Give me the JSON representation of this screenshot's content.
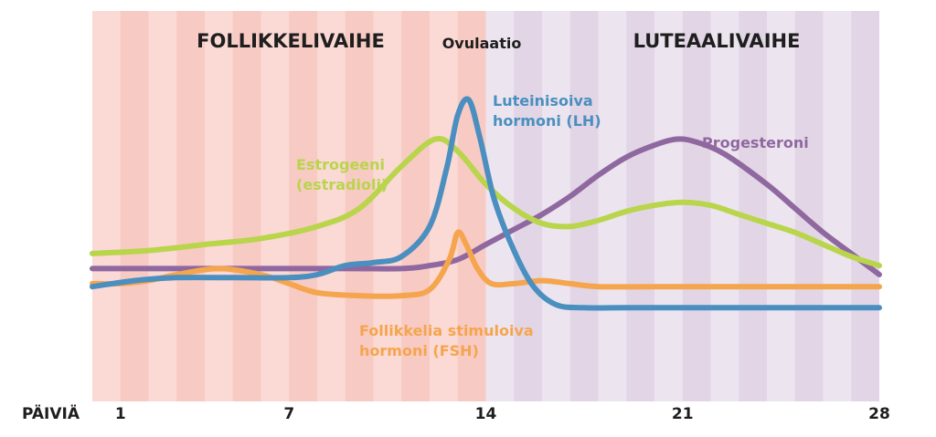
{
  "chart_data": {
    "type": "line",
    "xlabel": "PÄIVIÄ",
    "ticks": [
      {
        "day": 1,
        "label": "1"
      },
      {
        "day": 7,
        "label": "7"
      },
      {
        "day": 14,
        "label": "14"
      },
      {
        "day": 21,
        "label": "21"
      },
      {
        "day": 28,
        "label": "28"
      }
    ],
    "xlim": [
      0,
      28
    ],
    "ylim": [
      0,
      100
    ],
    "phases": [
      {
        "label": "FOLLIKKELIVAIHE",
        "start": 0,
        "end": 14,
        "color": "#fbd9d5",
        "stripe": "#f8cac4"
      },
      {
        "label": "LUTEAALIVAIHE",
        "start": 14,
        "end": 28,
        "color": "#ece5ef",
        "stripe": "#e2d6e6"
      }
    ],
    "annotations": [
      {
        "label": "Ovulaatio",
        "day": 14
      }
    ],
    "series": [
      {
        "name": "Estrogeeni (estradioli)",
        "label_lines": [
          "Estrogeeni",
          "(estradioli)"
        ],
        "color": "#b9d54b",
        "points": [
          [
            0,
            37
          ],
          [
            2,
            38
          ],
          [
            4,
            40
          ],
          [
            6,
            42
          ],
          [
            8,
            46
          ],
          [
            9.5,
            52
          ],
          [
            11,
            66
          ],
          [
            12.2,
            75
          ],
          [
            13,
            71
          ],
          [
            14,
            60
          ],
          [
            15,
            52
          ],
          [
            16,
            47
          ],
          [
            17,
            46
          ],
          [
            18,
            48
          ],
          [
            19,
            51
          ],
          [
            20,
            53
          ],
          [
            21,
            54
          ],
          [
            22,
            53
          ],
          [
            23,
            50
          ],
          [
            24,
            47
          ],
          [
            25,
            44
          ],
          [
            26,
            40
          ],
          [
            27,
            36
          ],
          [
            28,
            33
          ]
        ]
      },
      {
        "name": "Luteinisoiva hormoni (LH)",
        "label_lines": [
          "Luteinisoiva",
          "hormoni (LH)"
        ],
        "color": "#4a8fbf",
        "points": [
          [
            0,
            26
          ],
          [
            1.5,
            28
          ],
          [
            3,
            29
          ],
          [
            5,
            29
          ],
          [
            7,
            29
          ],
          [
            8,
            30
          ],
          [
            9,
            33
          ],
          [
            10,
            34
          ],
          [
            11,
            36
          ],
          [
            12,
            46
          ],
          [
            12.6,
            65
          ],
          [
            13,
            83
          ],
          [
            13.4,
            88
          ],
          [
            13.8,
            75
          ],
          [
            14.3,
            55
          ],
          [
            15,
            38
          ],
          [
            15.7,
            26
          ],
          [
            16.5,
            20
          ],
          [
            17.5,
            19
          ],
          [
            19,
            19
          ],
          [
            23,
            19
          ],
          [
            28,
            19
          ]
        ]
      },
      {
        "name": "Progesteroni",
        "label_lines": [
          "Progesteroni"
        ],
        "color": "#9068a0",
        "points": [
          [
            0,
            32
          ],
          [
            4,
            32
          ],
          [
            9,
            32
          ],
          [
            11,
            32
          ],
          [
            12,
            33
          ],
          [
            13,
            35
          ],
          [
            14,
            40
          ],
          [
            15,
            45
          ],
          [
            16,
            50
          ],
          [
            17,
            56
          ],
          [
            18,
            63
          ],
          [
            19,
            69
          ],
          [
            20,
            73
          ],
          [
            20.8,
            75
          ],
          [
            21.5,
            74
          ],
          [
            22.5,
            70
          ],
          [
            24,
            60
          ],
          [
            25,
            52
          ],
          [
            26,
            44
          ],
          [
            27,
            37
          ],
          [
            28,
            30
          ]
        ]
      },
      {
        "name": "Follikkelia stimuloiva hormoni (FSH)",
        "label_lines": [
          "Follikkelia stimuloiva",
          "hormoni (FSH)"
        ],
        "color": "#f5a54d",
        "points": [
          [
            0,
            27
          ],
          [
            1,
            27
          ],
          [
            2,
            28
          ],
          [
            3,
            30
          ],
          [
            4.5,
            32
          ],
          [
            6,
            30
          ],
          [
            7,
            27
          ],
          [
            8,
            24
          ],
          [
            9.5,
            23
          ],
          [
            11,
            23
          ],
          [
            12,
            25
          ],
          [
            12.7,
            35
          ],
          [
            13,
            44
          ],
          [
            13.3,
            40
          ],
          [
            13.7,
            32
          ],
          [
            14.2,
            27
          ],
          [
            15,
            27
          ],
          [
            16,
            28
          ],
          [
            17,
            27
          ],
          [
            18,
            26
          ],
          [
            20,
            26
          ],
          [
            24,
            26
          ],
          [
            28,
            26
          ]
        ]
      }
    ]
  }
}
